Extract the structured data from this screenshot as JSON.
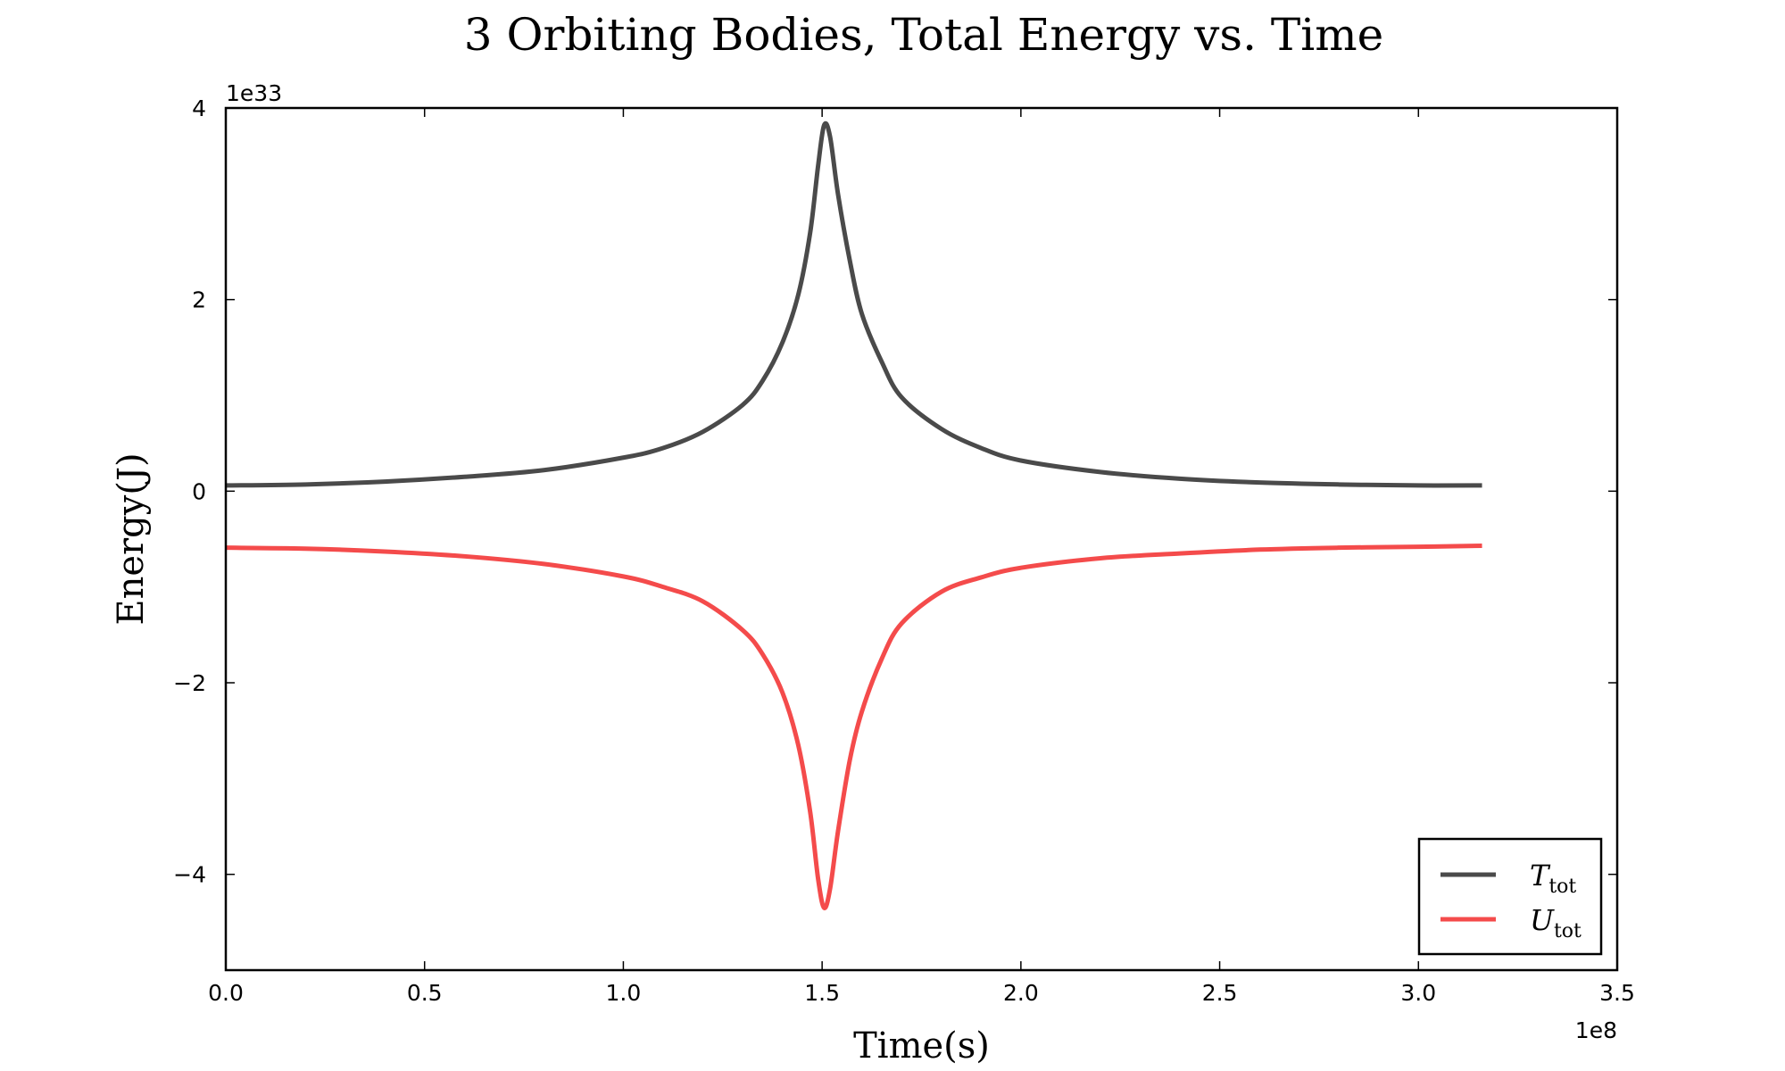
{
  "chart_data": {
    "type": "line",
    "title": "3 Orbiting Bodies, Total Energy vs. Time",
    "xlabel": "Time(s)",
    "ylabel": "Energy(J)",
    "x_offset_label": "1e8",
    "y_offset_label": "1e33",
    "xlim": [
      0.0,
      3.5
    ],
    "ylim": [
      -5,
      4
    ],
    "x_ticks": [
      "0.0",
      "0.5",
      "1.0",
      "1.5",
      "2.0",
      "2.5",
      "3.0",
      "3.5"
    ],
    "x_tick_values": [
      0.0,
      0.5,
      1.0,
      1.5,
      2.0,
      2.5,
      3.0,
      3.5
    ],
    "y_ticks": [
      "−4",
      "−2",
      "0",
      "2",
      "4"
    ],
    "y_tick_values": [
      -4,
      -2,
      0,
      2,
      4
    ],
    "grid": false,
    "legend_position": "lower-right",
    "series": [
      {
        "name": "T",
        "name_subscript": "tot",
        "color": "#4a4a4a",
        "x": [
          0.0,
          0.2,
          0.4,
          0.6,
          0.8,
          1.0,
          1.1,
          1.2,
          1.3,
          1.35,
          1.4,
          1.44,
          1.47,
          1.49,
          1.505,
          1.52,
          1.54,
          1.57,
          1.6,
          1.65,
          1.7,
          1.8,
          1.9,
          2.0,
          2.2,
          2.4,
          2.6,
          2.8,
          3.0,
          3.16
        ],
        "y": [
          0.06,
          0.07,
          0.1,
          0.15,
          0.22,
          0.35,
          0.45,
          0.62,
          0.9,
          1.15,
          1.55,
          2.05,
          2.7,
          3.4,
          3.82,
          3.7,
          3.1,
          2.4,
          1.85,
          1.35,
          0.98,
          0.65,
          0.45,
          0.32,
          0.2,
          0.13,
          0.09,
          0.07,
          0.06,
          0.06
        ]
      },
      {
        "name": "U",
        "name_subscript": "tot",
        "color": "#f44b4b",
        "x": [
          0.0,
          0.2,
          0.4,
          0.6,
          0.8,
          1.0,
          1.1,
          1.2,
          1.3,
          1.35,
          1.4,
          1.44,
          1.47,
          1.49,
          1.505,
          1.52,
          1.54,
          1.57,
          1.6,
          1.65,
          1.7,
          1.8,
          1.9,
          2.0,
          2.2,
          2.4,
          2.6,
          2.8,
          3.0,
          3.16
        ],
        "y": [
          -0.59,
          -0.6,
          -0.63,
          -0.68,
          -0.76,
          -0.89,
          -1.0,
          -1.15,
          -1.45,
          -1.7,
          -2.1,
          -2.65,
          -3.35,
          -4.05,
          -4.35,
          -4.15,
          -3.55,
          -2.8,
          -2.3,
          -1.75,
          -1.38,
          -1.05,
          -0.9,
          -0.8,
          -0.7,
          -0.65,
          -0.61,
          -0.59,
          -0.58,
          -0.57
        ]
      }
    ]
  }
}
